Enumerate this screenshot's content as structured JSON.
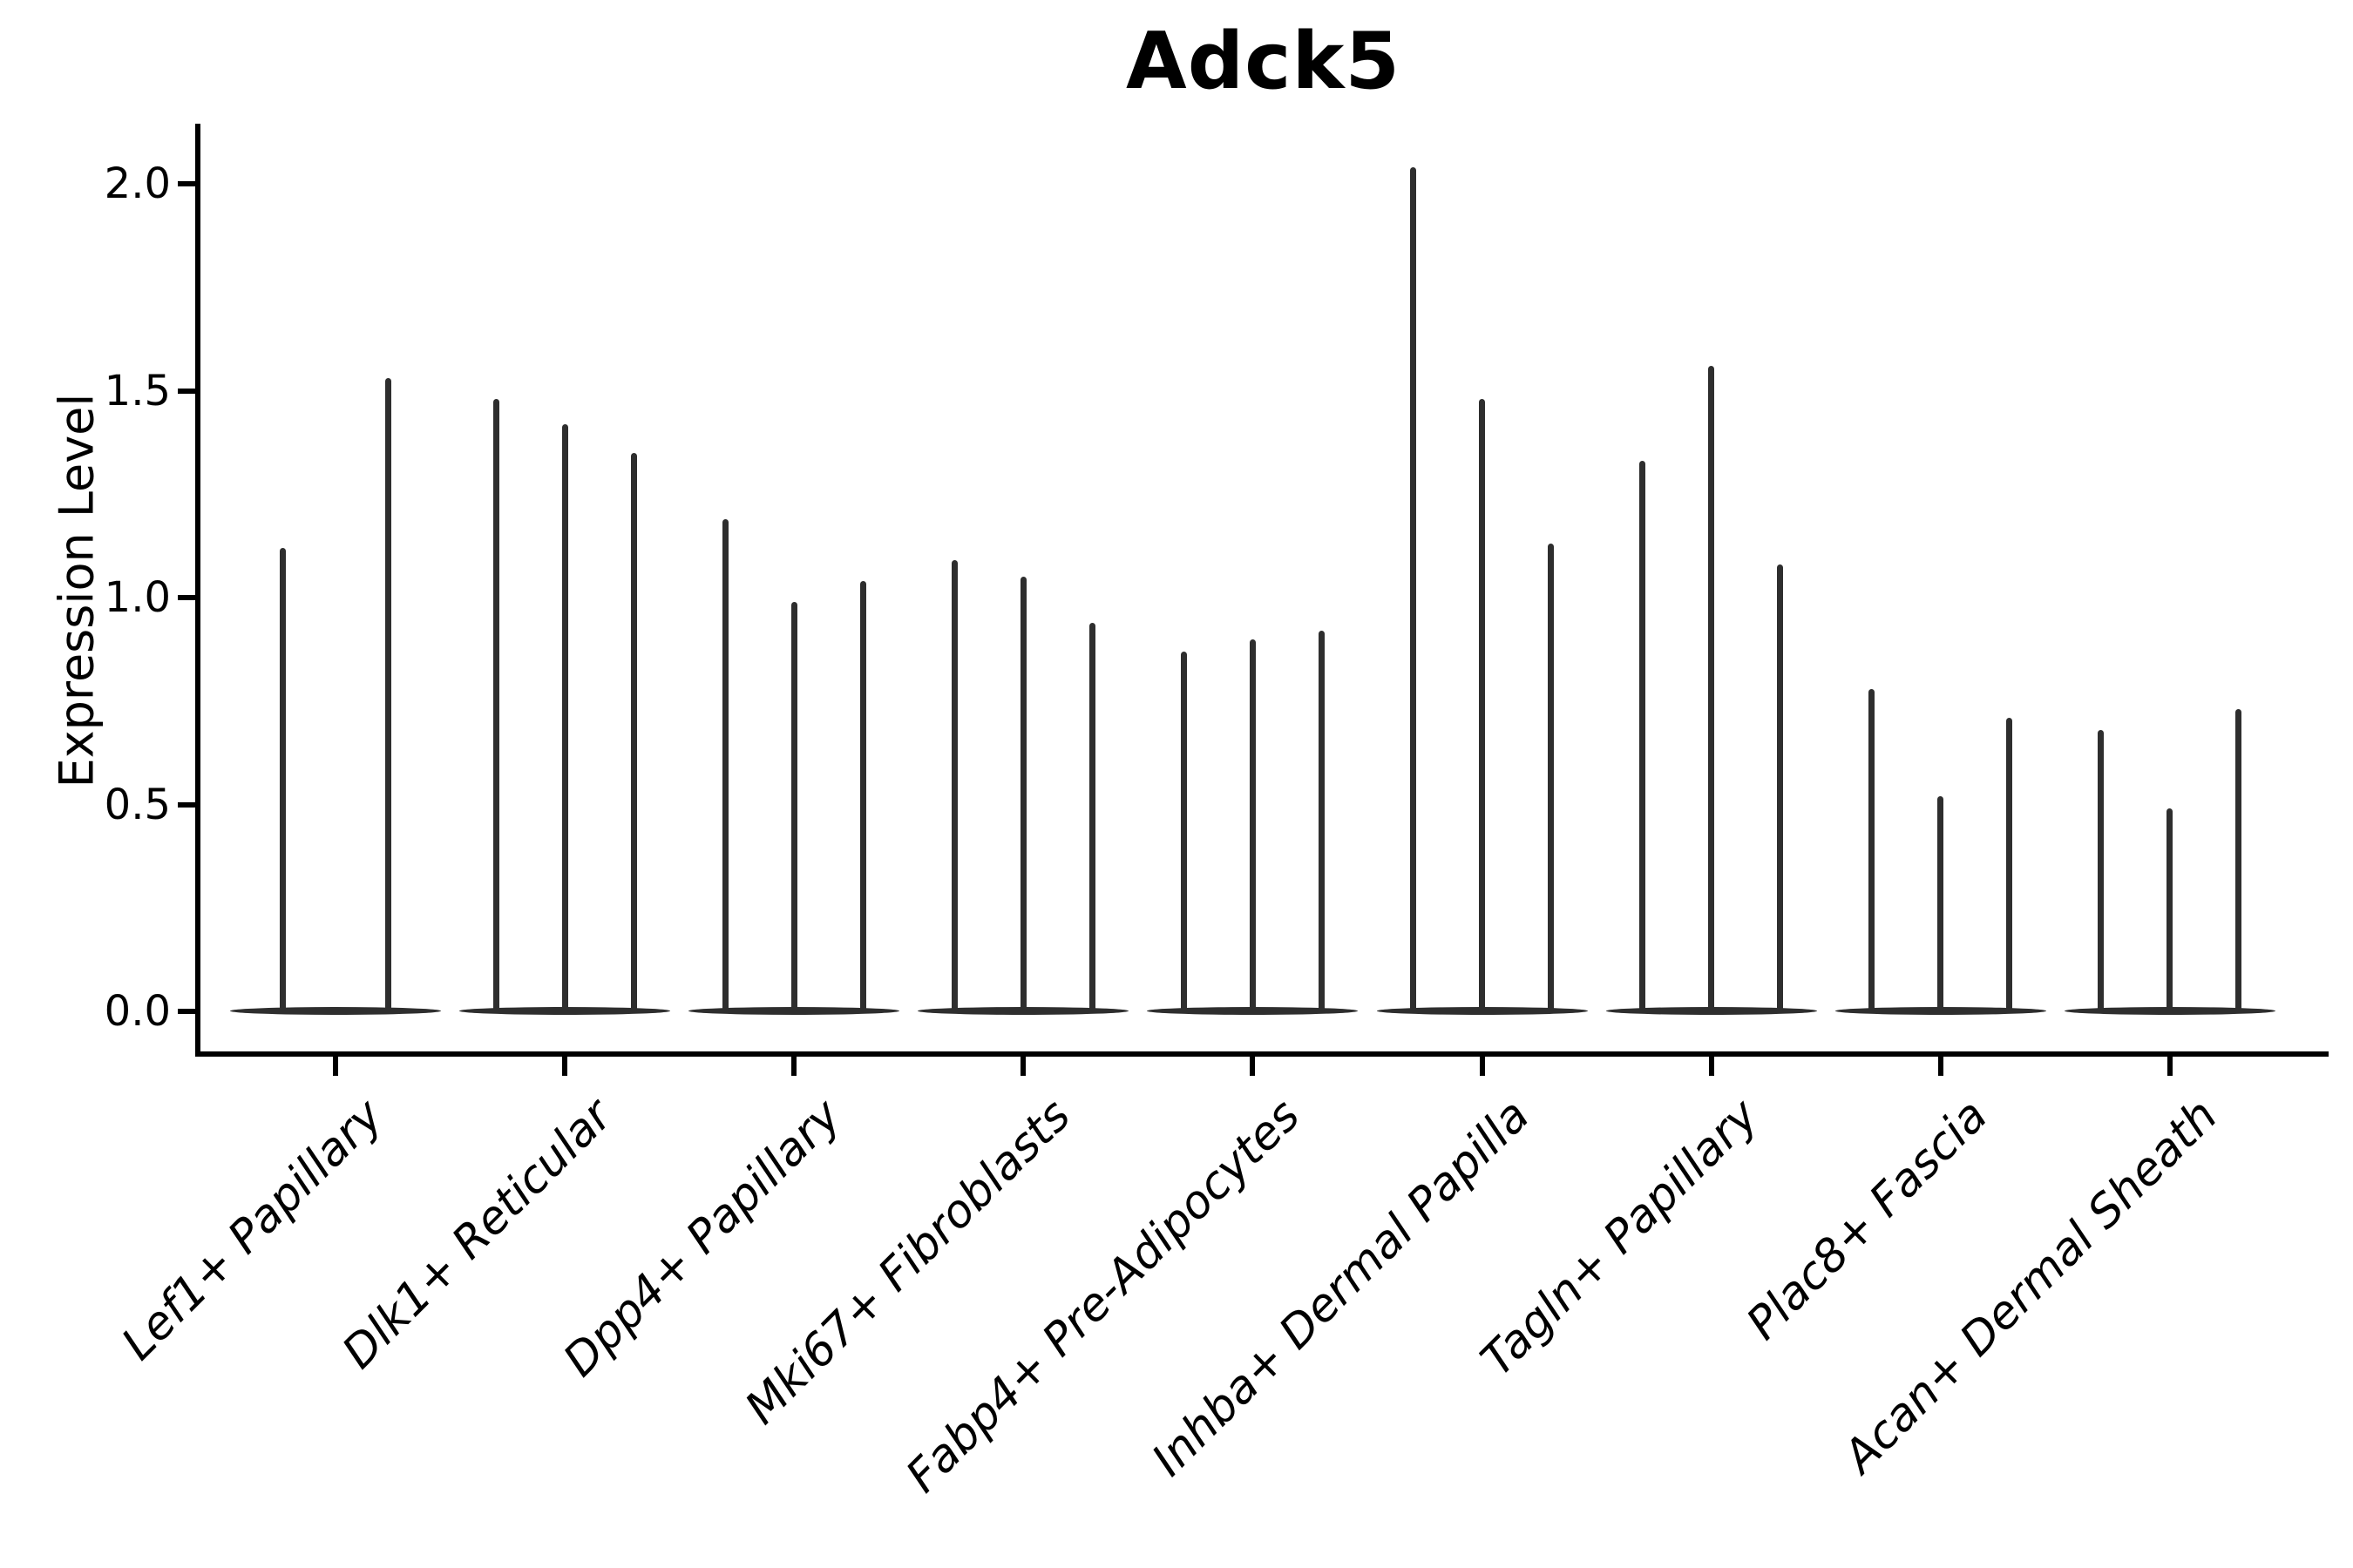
{
  "title": "Adck5",
  "y_axis": {
    "label": "Expression Level",
    "tick_labels": [
      "0.0",
      "0.5",
      "1.0",
      "1.5",
      "2.0"
    ],
    "tick_values": [
      0.0,
      0.5,
      1.0,
      1.5,
      2.0
    ]
  },
  "x_axis": {
    "label": "",
    "tick_labels": [
      "Lef1+ Papillary",
      "Dlk1+ Reticular",
      "Dpp4+ Papillary",
      "Mki67+ Fibroblasts",
      "Fabp4+ Pre-Adipocytes",
      "Inhba+ Dermal Papilla",
      "Tagln+ Papillary",
      "Plac8+ Fascia",
      "Acan+ Dermal Sheath"
    ]
  },
  "chart_data": {
    "type": "violin",
    "title": "Adck5",
    "xlabel": "",
    "ylabel": "Expression Level",
    "ylim": [
      -0.1,
      2.15
    ],
    "yticks": [
      0.0,
      0.5,
      1.0,
      1.5,
      2.0
    ],
    "grid": false,
    "legend": "none",
    "categories": [
      "Lef1+ Papillary",
      "Dlk1+ Reticular",
      "Dpp4+ Papillary",
      "Mki67+ Fibroblasts",
      "Fabp4+ Pre-Adipocytes",
      "Inhba+ Dermal Papilla",
      "Tagln+ Papillary",
      "Plac8+ Fascia",
      "Acan+ Dermal Sheath"
    ],
    "groups": [
      {
        "category": "Lef1+ Papillary",
        "violin_maxima": [
          1.12,
          1.53
        ]
      },
      {
        "category": "Dlk1+ Reticular",
        "violin_maxima": [
          1.48,
          1.42,
          1.35
        ]
      },
      {
        "category": "Dpp4+ Papillary",
        "violin_maxima": [
          1.19,
          0.99,
          1.04
        ]
      },
      {
        "category": "Mki67+ Fibroblasts",
        "violin_maxima": [
          1.09,
          1.05,
          0.94
        ]
      },
      {
        "category": "Fabp4+ Pre-Adipocytes",
        "violin_maxima": [
          0.87,
          0.9,
          0.92
        ]
      },
      {
        "category": "Inhba+ Dermal Papilla",
        "violin_maxima": [
          2.04,
          1.48,
          1.13
        ]
      },
      {
        "category": "Tagln+ Papillary",
        "violin_maxima": [
          1.33,
          1.56,
          1.08
        ]
      },
      {
        "category": "Plac8+ Fascia",
        "violin_maxima": [
          0.78,
          0.52,
          0.71
        ]
      },
      {
        "category": "Acan+ Dermal Sheath",
        "violin_maxima": [
          0.68,
          0.49,
          0.73
        ]
      }
    ],
    "violin_baseline_value": 0.0
  },
  "colors": {
    "background": "#ffffff",
    "violin": "#2e2e2e",
    "axis": "#000000",
    "text": "#000000"
  }
}
